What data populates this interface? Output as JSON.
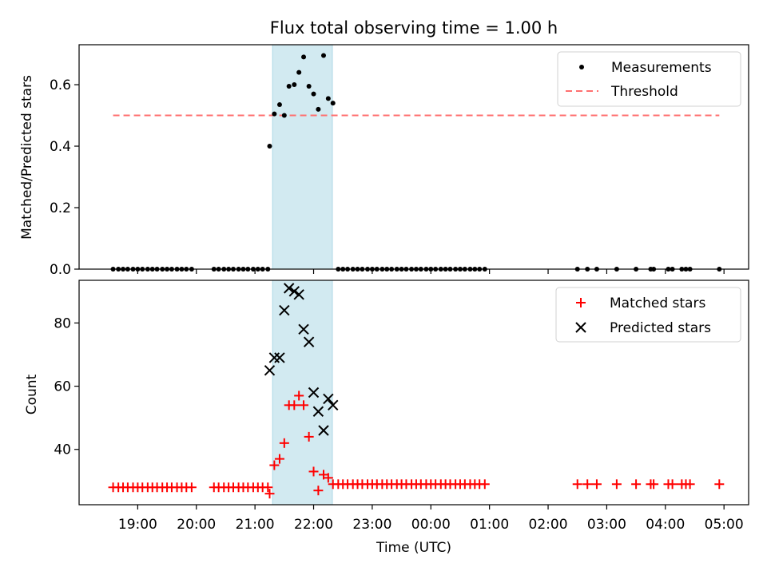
{
  "figure": {
    "title": "Flux total observing time = 1.00 h"
  },
  "chart_data": [
    {
      "id": "ratio",
      "type": "scatter",
      "title": "Flux total observing time = 1.00 h",
      "ylabel": "Matched/Predicted stars",
      "xlabel": "",
      "x_unit": "hours since 00:00 UTC (negative = previous evening)",
      "xlim": [
        -6.0,
        5.42
      ],
      "ylim": [
        0.0,
        0.73
      ],
      "yticks": [
        0.0,
        0.2,
        0.4,
        0.6
      ],
      "ytick_labels": [
        "0.0",
        "0.2",
        "0.4",
        "0.6"
      ],
      "grid": false,
      "legend_position": "upper right",
      "highlight_band": {
        "x_start": -2.7,
        "x_end": -1.68,
        "color": "#add8e6"
      },
      "threshold": {
        "name": "Threshold",
        "y": 0.5,
        "x_start": -5.42,
        "x_end": 4.92,
        "color": "#ff7070"
      },
      "series": [
        {
          "name": "Measurements",
          "color": "#000000",
          "marker": "dot",
          "points": [
            [
              -5.42,
              0.0
            ],
            [
              -5.33,
              0.0
            ],
            [
              -5.25,
              0.0
            ],
            [
              -5.17,
              0.0
            ],
            [
              -5.08,
              0.0
            ],
            [
              -5.0,
              0.0
            ],
            [
              -4.92,
              0.0
            ],
            [
              -4.83,
              0.0
            ],
            [
              -4.75,
              0.0
            ],
            [
              -4.67,
              0.0
            ],
            [
              -4.58,
              0.0
            ],
            [
              -4.5,
              0.0
            ],
            [
              -4.42,
              0.0
            ],
            [
              -4.33,
              0.0
            ],
            [
              -4.25,
              0.0
            ],
            [
              -4.17,
              0.0
            ],
            [
              -4.08,
              0.0
            ],
            [
              -3.7,
              0.0
            ],
            [
              -3.62,
              0.0
            ],
            [
              -3.53,
              0.0
            ],
            [
              -3.45,
              0.0
            ],
            [
              -3.37,
              0.0
            ],
            [
              -3.28,
              0.0
            ],
            [
              -3.2,
              0.0
            ],
            [
              -3.12,
              0.0
            ],
            [
              -3.03,
              0.0
            ],
            [
              -2.95,
              0.0
            ],
            [
              -2.87,
              0.0
            ],
            [
              -2.78,
              0.0
            ],
            [
              -2.75,
              0.4
            ],
            [
              -2.67,
              0.505
            ],
            [
              -2.58,
              0.535
            ],
            [
              -2.5,
              0.5
            ],
            [
              -2.42,
              0.595
            ],
            [
              -2.33,
              0.6
            ],
            [
              -2.25,
              0.64
            ],
            [
              -2.17,
              0.69
            ],
            [
              -2.08,
              0.595
            ],
            [
              -2.0,
              0.57
            ],
            [
              -1.92,
              0.52
            ],
            [
              -1.83,
              0.695
            ],
            [
              -1.75,
              0.555
            ],
            [
              -1.67,
              0.54
            ],
            [
              -1.58,
              0.0
            ],
            [
              -1.5,
              0.0
            ],
            [
              -1.42,
              0.0
            ],
            [
              -1.33,
              0.0
            ],
            [
              -1.25,
              0.0
            ],
            [
              -1.17,
              0.0
            ],
            [
              -1.08,
              0.0
            ],
            [
              -1.0,
              0.0
            ],
            [
              -0.92,
              0.0
            ],
            [
              -0.83,
              0.0
            ],
            [
              -0.75,
              0.0
            ],
            [
              -0.67,
              0.0
            ],
            [
              -0.58,
              0.0
            ],
            [
              -0.5,
              0.0
            ],
            [
              -0.42,
              0.0
            ],
            [
              -0.33,
              0.0
            ],
            [
              -0.25,
              0.0
            ],
            [
              -0.17,
              0.0
            ],
            [
              -0.08,
              0.0
            ],
            [
              0.0,
              0.0
            ],
            [
              0.08,
              0.0
            ],
            [
              0.17,
              0.0
            ],
            [
              0.25,
              0.0
            ],
            [
              0.33,
              0.0
            ],
            [
              0.42,
              0.0
            ],
            [
              0.5,
              0.0
            ],
            [
              0.58,
              0.0
            ],
            [
              0.67,
              0.0
            ],
            [
              0.75,
              0.0
            ],
            [
              0.83,
              0.0
            ],
            [
              0.92,
              0.0
            ],
            [
              2.5,
              0.0
            ],
            [
              2.67,
              0.0
            ],
            [
              2.83,
              0.0
            ],
            [
              3.17,
              0.0
            ],
            [
              3.5,
              0.0
            ],
            [
              3.75,
              0.0
            ],
            [
              3.8,
              0.0
            ],
            [
              4.05,
              0.0
            ],
            [
              4.12,
              0.0
            ],
            [
              4.28,
              0.0
            ],
            [
              4.35,
              0.0
            ],
            [
              4.42,
              0.0
            ],
            [
              4.92,
              0.0
            ]
          ]
        }
      ]
    },
    {
      "id": "counts",
      "type": "scatter",
      "title": "",
      "ylabel": "Count",
      "xlabel": "Time (UTC)",
      "x_unit": "hours since 00:00 UTC (negative = previous evening)",
      "xlim": [
        -6.0,
        5.42
      ],
      "ylim": [
        22.5,
        93.5
      ],
      "yticks": [
        40,
        60,
        80
      ],
      "ytick_labels": [
        "40",
        "60",
        "80"
      ],
      "xticks": [
        -5,
        -4,
        -3,
        -2,
        -1,
        0,
        1,
        2,
        3,
        4,
        5
      ],
      "xtick_labels": [
        "19:00",
        "20:00",
        "21:00",
        "22:00",
        "23:00",
        "00:00",
        "01:00",
        "02:00",
        "03:00",
        "04:00",
        "05:00"
      ],
      "grid": false,
      "legend_position": "upper right",
      "highlight_band": {
        "x_start": -2.7,
        "x_end": -1.68,
        "color": "#add8e6"
      },
      "series": [
        {
          "name": "Matched stars",
          "color": "#ff0000",
          "marker": "plus",
          "points": [
            [
              -5.42,
              28
            ],
            [
              -5.33,
              28
            ],
            [
              -5.25,
              28
            ],
            [
              -5.17,
              28
            ],
            [
              -5.08,
              28
            ],
            [
              -5.0,
              28
            ],
            [
              -4.92,
              28
            ],
            [
              -4.83,
              28
            ],
            [
              -4.75,
              28
            ],
            [
              -4.67,
              28
            ],
            [
              -4.58,
              28
            ],
            [
              -4.5,
              28
            ],
            [
              -4.42,
              28
            ],
            [
              -4.33,
              28
            ],
            [
              -4.25,
              28
            ],
            [
              -4.17,
              28
            ],
            [
              -4.08,
              28
            ],
            [
              -3.7,
              28
            ],
            [
              -3.62,
              28
            ],
            [
              -3.53,
              28
            ],
            [
              -3.45,
              28
            ],
            [
              -3.37,
              28
            ],
            [
              -3.28,
              28
            ],
            [
              -3.2,
              28
            ],
            [
              -3.12,
              28
            ],
            [
              -3.03,
              28
            ],
            [
              -2.95,
              28
            ],
            [
              -2.87,
              28
            ],
            [
              -2.78,
              28
            ],
            [
              -2.75,
              26
            ],
            [
              -2.67,
              35
            ],
            [
              -2.58,
              37
            ],
            [
              -2.5,
              42
            ],
            [
              -2.42,
              54
            ],
            [
              -2.33,
              54
            ],
            [
              -2.25,
              57
            ],
            [
              -2.17,
              54
            ],
            [
              -2.08,
              44
            ],
            [
              -2.0,
              33
            ],
            [
              -1.92,
              27
            ],
            [
              -1.83,
              32
            ],
            [
              -1.75,
              31
            ],
            [
              -1.67,
              29
            ],
            [
              -1.58,
              29
            ],
            [
              -1.5,
              29
            ],
            [
              -1.42,
              29
            ],
            [
              -1.33,
              29
            ],
            [
              -1.25,
              29
            ],
            [
              -1.17,
              29
            ],
            [
              -1.08,
              29
            ],
            [
              -1.0,
              29
            ],
            [
              -0.92,
              29
            ],
            [
              -0.83,
              29
            ],
            [
              -0.75,
              29
            ],
            [
              -0.67,
              29
            ],
            [
              -0.58,
              29
            ],
            [
              -0.5,
              29
            ],
            [
              -0.42,
              29
            ],
            [
              -0.33,
              29
            ],
            [
              -0.25,
              29
            ],
            [
              -0.17,
              29
            ],
            [
              -0.08,
              29
            ],
            [
              0.0,
              29
            ],
            [
              0.08,
              29
            ],
            [
              0.17,
              29
            ],
            [
              0.25,
              29
            ],
            [
              0.33,
              29
            ],
            [
              0.42,
              29
            ],
            [
              0.5,
              29
            ],
            [
              0.58,
              29
            ],
            [
              0.67,
              29
            ],
            [
              0.75,
              29
            ],
            [
              0.83,
              29
            ],
            [
              0.92,
              29
            ],
            [
              2.5,
              29
            ],
            [
              2.67,
              29
            ],
            [
              2.83,
              29
            ],
            [
              3.17,
              29
            ],
            [
              3.5,
              29
            ],
            [
              3.75,
              29
            ],
            [
              3.8,
              29
            ],
            [
              4.05,
              29
            ],
            [
              4.12,
              29
            ],
            [
              4.28,
              29
            ],
            [
              4.35,
              29
            ],
            [
              4.42,
              29
            ],
            [
              4.92,
              29
            ]
          ]
        },
        {
          "name": "Predicted stars",
          "color": "#000000",
          "marker": "cross",
          "points": [
            [
              -2.75,
              65
            ],
            [
              -2.67,
              69
            ],
            [
              -2.58,
              69
            ],
            [
              -2.5,
              84
            ],
            [
              -2.42,
              91
            ],
            [
              -2.33,
              90
            ],
            [
              -2.25,
              89
            ],
            [
              -2.17,
              78
            ],
            [
              -2.08,
              74
            ],
            [
              -2.0,
              58
            ],
            [
              -1.92,
              52
            ],
            [
              -1.83,
              46
            ],
            [
              -1.75,
              56
            ],
            [
              -1.67,
              54
            ]
          ]
        }
      ]
    }
  ]
}
